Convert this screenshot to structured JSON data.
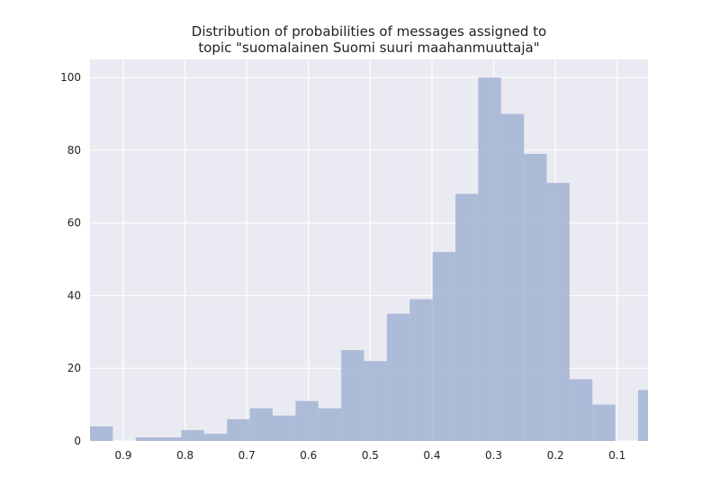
{
  "chart_data": {
    "type": "bar",
    "title_lines": [
      "Distribution of probabilities of messages assigned to",
      "topic \"suomalainen Suomi suuri maahanmuuttaja\""
    ],
    "xlabel": "",
    "ylabel": "",
    "x_inverted": true,
    "xlim": [
      0.954,
      0.05
    ],
    "ylim": [
      0,
      105
    ],
    "x_ticks": [
      0.9,
      0.8,
      0.7,
      0.6,
      0.5,
      0.4,
      0.3,
      0.2,
      0.1
    ],
    "x_tick_labels": [
      "0.9",
      "0.8",
      "0.7",
      "0.6",
      "0.5",
      "0.4",
      "0.3",
      "0.2",
      "0.1"
    ],
    "y_ticks": [
      0,
      20,
      40,
      60,
      80,
      100
    ],
    "y_tick_labels": [
      "0",
      "20",
      "40",
      "60",
      "80",
      "100"
    ],
    "bin_edges": [
      0.954,
      0.917,
      0.88,
      0.843,
      0.806,
      0.769,
      0.732,
      0.695,
      0.658,
      0.621,
      0.584,
      0.547,
      0.51,
      0.473,
      0.436,
      0.399,
      0.362,
      0.325,
      0.288,
      0.251,
      0.214,
      0.177,
      0.14,
      0.103,
      0.066,
      0.05
    ],
    "counts": [
      4,
      0,
      1,
      1,
      3,
      2,
      6,
      9,
      7,
      11,
      9,
      25,
      22,
      35,
      39,
      52,
      68,
      100,
      90,
      79,
      71,
      17,
      10,
      0,
      14
    ],
    "grid": true,
    "colors": {
      "background": "#eaeaf2",
      "grid": "#ffffff",
      "bar": "#a9b8d6"
    }
  }
}
